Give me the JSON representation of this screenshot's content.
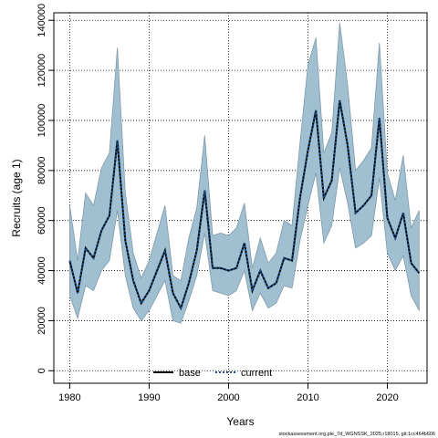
{
  "chart_data": {
    "type": "line",
    "xlabel": "Years",
    "ylabel": "Recruits (age 1)",
    "xlim": [
      1978,
      2025
    ],
    "ylim": [
      -5000,
      143000
    ],
    "xticks": [
      1980,
      1990,
      2000,
      2010,
      2020
    ],
    "yticks": [
      0,
      20000,
      40000,
      60000,
      80000,
      100000,
      120000,
      140000
    ],
    "grid": true,
    "legend_position": "bottom-center",
    "x": [
      1980,
      1981,
      1982,
      1983,
      1984,
      1985,
      1986,
      1987,
      1988,
      1989,
      1990,
      1991,
      1992,
      1993,
      1994,
      1995,
      1996,
      1997,
      1998,
      1999,
      2000,
      2001,
      2002,
      2003,
      2004,
      2005,
      2006,
      2007,
      2008,
      2009,
      2010,
      2011,
      2012,
      2013,
      2014,
      2015,
      2016,
      2017,
      2018,
      2019,
      2020,
      2021,
      2022,
      2023,
      2024
    ],
    "series": [
      {
        "name": "base",
        "color": "#000000",
        "values": [
          44000,
          31000,
          49000,
          45000,
          56000,
          62000,
          92000,
          52000,
          36000,
          27000,
          32000,
          40000,
          48000,
          31000,
          25000,
          35000,
          48000,
          72000,
          41000,
          41000,
          40000,
          41000,
          51000,
          32000,
          40000,
          33000,
          35000,
          45000,
          44000,
          69000,
          88000,
          104000,
          69000,
          76000,
          108000,
          90000,
          63000,
          66000,
          70000,
          101000,
          61000,
          53000,
          63000,
          43000,
          39000
        ]
      },
      {
        "name": "current",
        "color": "#1a4f8b",
        "values": [
          44000,
          31000,
          49000,
          45000,
          56000,
          62000,
          92000,
          52000,
          36000,
          27000,
          32000,
          40000,
          48000,
          31000,
          25000,
          35000,
          48000,
          72000,
          41000,
          41000,
          40000,
          41000,
          51000,
          32000,
          40000,
          33000,
          35000,
          45000,
          44000,
          69000,
          88000,
          104000,
          69000,
          76000,
          108000,
          90000,
          63000,
          66000,
          70000,
          101000,
          61000,
          53000,
          63000,
          43000,
          39000
        ]
      }
    ],
    "band": {
      "color": "#a0bfd0",
      "edge_color": "#7f9aaa",
      "upper": [
        66000,
        44000,
        71000,
        66000,
        81000,
        87000,
        129000,
        71000,
        47000,
        37000,
        44000,
        55000,
        66000,
        38000,
        36000,
        53000,
        65000,
        94000,
        54000,
        55000,
        54000,
        57000,
        67000,
        41000,
        53000,
        43000,
        47000,
        60000,
        58000,
        91000,
        122000,
        133000,
        87000,
        95000,
        139000,
        114000,
        80000,
        84000,
        89000,
        131000,
        79000,
        68000,
        86000,
        57000,
        64000
      ],
      "lower": [
        30000,
        21000,
        34000,
        32000,
        40000,
        44000,
        64000,
        38000,
        25000,
        20000,
        24000,
        30000,
        36000,
        20000,
        19000,
        28000,
        38000,
        55000,
        32000,
        31000,
        30000,
        32000,
        40000,
        24000,
        31000,
        25000,
        27000,
        34000,
        33000,
        52000,
        66000,
        79000,
        51000,
        58000,
        81000,
        67000,
        49000,
        51000,
        54000,
        77000,
        47000,
        40000,
        46000,
        30000,
        24000
      ]
    },
    "legend": [
      {
        "label": "base",
        "style": "solid",
        "color": "#000000"
      },
      {
        "label": "current",
        "style": "dotted",
        "color": "#1a4f8b"
      }
    ]
  },
  "footer_text": "stockassessment.org,ple_7d_WGNSSK_2025,r18015, git:1cc464b606"
}
